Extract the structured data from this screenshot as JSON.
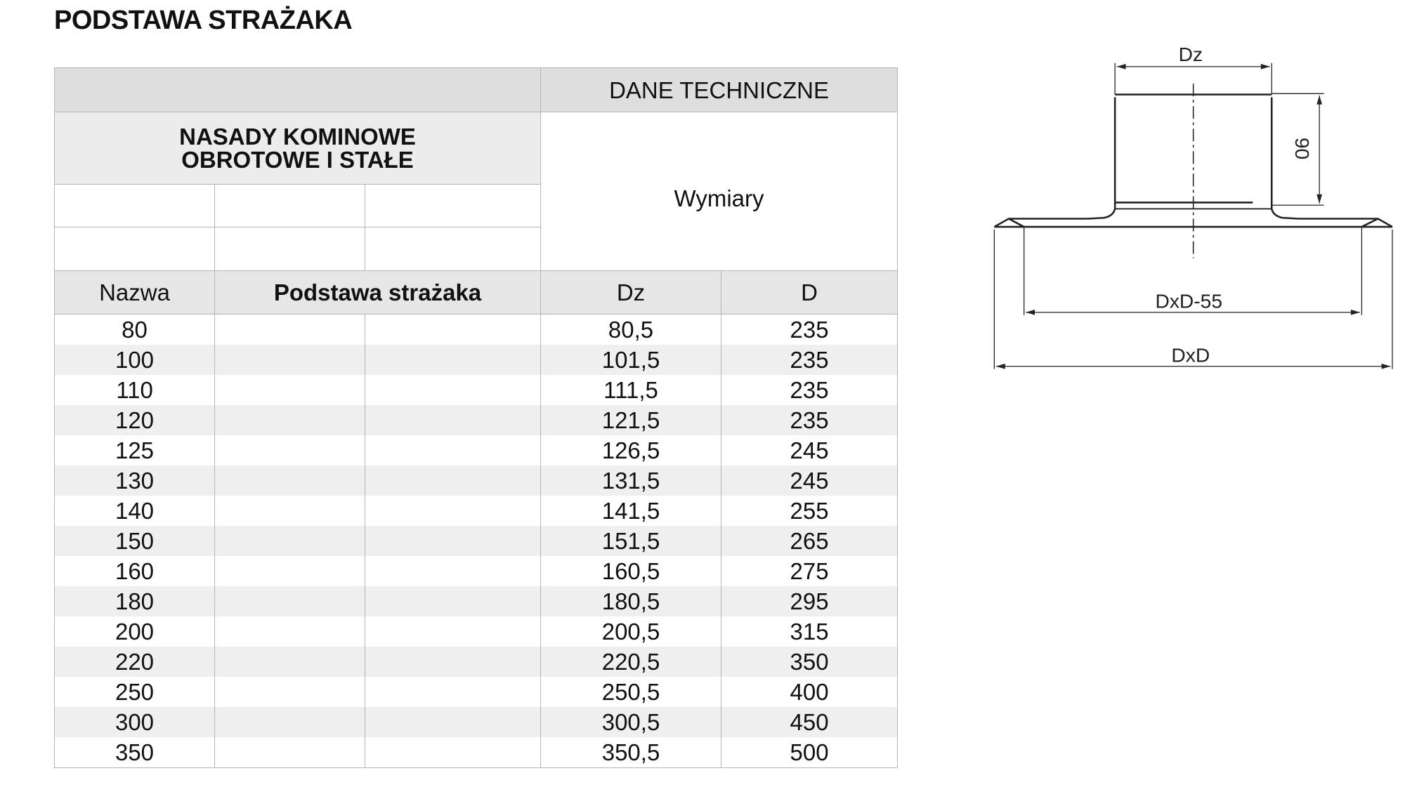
{
  "title": "PODSTAWA STRAŻAKA",
  "table": {
    "group_header": "DANE TECHNICZNE",
    "product_group": "NASADY KOMINOWE OBROTOWE I STAŁE",
    "product_group_line1": "NASADY KOMINOWE",
    "product_group_line2": "OBROTOWE I STAŁE",
    "dimensions_label": "Wymiary",
    "columns": [
      "Nazwa",
      "Podstawa strażaka",
      "Dz",
      "D"
    ],
    "rows": [
      {
        "nazwa": "80",
        "dz": "80,5",
        "d": "235"
      },
      {
        "nazwa": "100",
        "dz": "101,5",
        "d": "235"
      },
      {
        "nazwa": "110",
        "dz": "111,5",
        "d": "235"
      },
      {
        "nazwa": "120",
        "dz": "121,5",
        "d": "235"
      },
      {
        "nazwa": "125",
        "dz": "126,5",
        "d": "245"
      },
      {
        "nazwa": "130",
        "dz": "131,5",
        "d": "245"
      },
      {
        "nazwa": "140",
        "dz": "141,5",
        "d": "255"
      },
      {
        "nazwa": "150",
        "dz": "151,5",
        "d": "265"
      },
      {
        "nazwa": "160",
        "dz": "160,5",
        "d": "275"
      },
      {
        "nazwa": "180",
        "dz": "180,5",
        "d": "295"
      },
      {
        "nazwa": "200",
        "dz": "200,5",
        "d": "315"
      },
      {
        "nazwa": "220",
        "dz": "220,5",
        "d": "350"
      },
      {
        "nazwa": "250",
        "dz": "250,5",
        "d": "400"
      },
      {
        "nazwa": "300",
        "dz": "300,5",
        "d": "450"
      },
      {
        "nazwa": "350",
        "dz": "350,5",
        "d": "500"
      }
    ]
  },
  "diagram": {
    "label_dz": "Dz",
    "label_height": "90",
    "label_inner": "DxD-55",
    "label_outer": "DxD"
  }
}
